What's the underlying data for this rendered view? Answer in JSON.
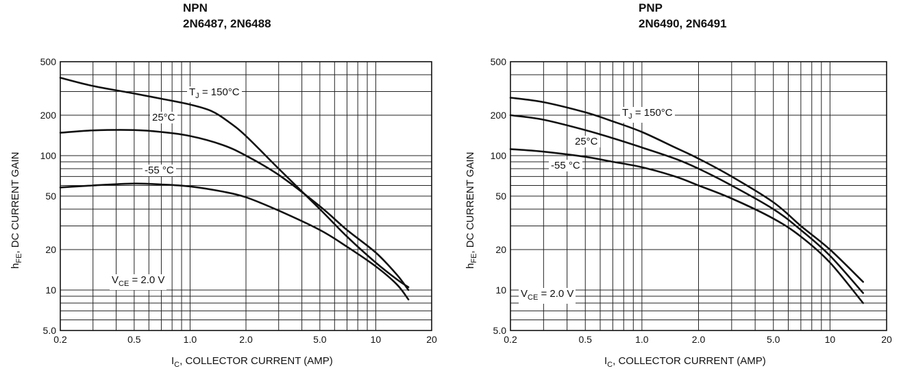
{
  "chart_data": [
    {
      "type": "line",
      "title": "NPN",
      "subtitle": "2N6487, 2N6488",
      "xlabel": "I_C, COLLECTOR CURRENT (AMP)",
      "ylabel": "h_FE, DC CURRENT GAIN",
      "x_scale": "log",
      "y_scale": "log",
      "xlim": [
        0.2,
        20
      ],
      "ylim": [
        5,
        500
      ],
      "x_ticks": [
        0.2,
        0.5,
        1.0,
        2.0,
        5.0,
        10,
        20
      ],
      "x_tick_labels": [
        "0.2",
        "0.5",
        "1.0",
        "2.0",
        "5.0",
        "10",
        "20"
      ],
      "y_ticks": [
        5,
        10,
        20,
        50,
        100,
        200,
        500
      ],
      "y_tick_labels": [
        "5.0",
        "10",
        "20",
        "50",
        "100",
        "200",
        "500"
      ],
      "grid": true,
      "series": [
        {
          "name": "T_J = 150°C",
          "x": [
            0.2,
            0.3,
            0.5,
            0.7,
            1.0,
            1.3,
            1.6,
            2.0,
            3.0,
            5.0,
            7.0,
            10,
            13,
            15
          ],
          "y": [
            380,
            330,
            290,
            265,
            240,
            215,
            180,
            140,
            80,
            40,
            25,
            16,
            12,
            10.5
          ]
        },
        {
          "name": "25°C",
          "x": [
            0.2,
            0.3,
            0.5,
            0.7,
            1.0,
            1.5,
            2.0,
            3.0,
            5.0,
            7.0,
            10,
            13,
            15
          ],
          "y": [
            148,
            154,
            155,
            150,
            140,
            120,
            100,
            72,
            42,
            28,
            19,
            13,
            10
          ]
        },
        {
          "name": "-55 °C",
          "x": [
            0.2,
            0.3,
            0.5,
            0.7,
            1.0,
            1.5,
            2.0,
            3.0,
            5.0,
            7.0,
            10,
            13,
            15
          ],
          "y": [
            58,
            60,
            62,
            61,
            59,
            54,
            49,
            39,
            28,
            21,
            15,
            11,
            8.5
          ]
        }
      ],
      "annotations": {
        "tj": "T_J = 150°C",
        "c25": "25°C",
        "cm55": "-55 °C",
        "vce": "V_CE = 2.0 V"
      }
    },
    {
      "type": "line",
      "title": "PNP",
      "subtitle": "2N6490, 2N6491",
      "xlabel": "I_C, COLLECTOR CURRENT (AMP)",
      "ylabel": "h_FE, DC CURRENT GAIN",
      "x_scale": "log",
      "y_scale": "log",
      "xlim": [
        0.2,
        20
      ],
      "ylim": [
        5,
        500
      ],
      "x_ticks": [
        0.2,
        0.5,
        1.0,
        2.0,
        5.0,
        10,
        20
      ],
      "x_tick_labels": [
        "0.2",
        "0.5",
        "1.0",
        "2.0",
        "5.0",
        "10",
        "20"
      ],
      "y_ticks": [
        5,
        10,
        20,
        50,
        100,
        200,
        500
      ],
      "y_tick_labels": [
        "5.0",
        "10",
        "20",
        "50",
        "100",
        "200",
        "500"
      ],
      "grid": true,
      "series": [
        {
          "name": "T_J = 150°C",
          "x": [
            0.2,
            0.3,
            0.5,
            0.7,
            1.0,
            1.5,
            2.0,
            3.0,
            5.0,
            7.0,
            10,
            15
          ],
          "y": [
            270,
            250,
            210,
            180,
            150,
            115,
            95,
            70,
            45,
            30,
            20,
            11.5
          ]
        },
        {
          "name": "25°C",
          "x": [
            0.2,
            0.3,
            0.5,
            0.7,
            1.0,
            1.5,
            2.0,
            3.0,
            5.0,
            7.0,
            10,
            15
          ],
          "y": [
            200,
            185,
            155,
            135,
            115,
            95,
            80,
            60,
            40,
            28,
            18,
            9.5
          ]
        },
        {
          "name": "-55 °C",
          "x": [
            0.2,
            0.3,
            0.5,
            0.7,
            1.0,
            1.5,
            2.0,
            3.0,
            5.0,
            7.0,
            10,
            15
          ],
          "y": [
            112,
            107,
            98,
            90,
            82,
            70,
            60,
            48,
            34,
            25,
            16,
            8
          ]
        }
      ],
      "annotations": {
        "tj": "T_J = 150°C",
        "c25": "25°C",
        "cm55": "-55 °C",
        "vce": "V_CE = 2.0 V"
      }
    }
  ]
}
